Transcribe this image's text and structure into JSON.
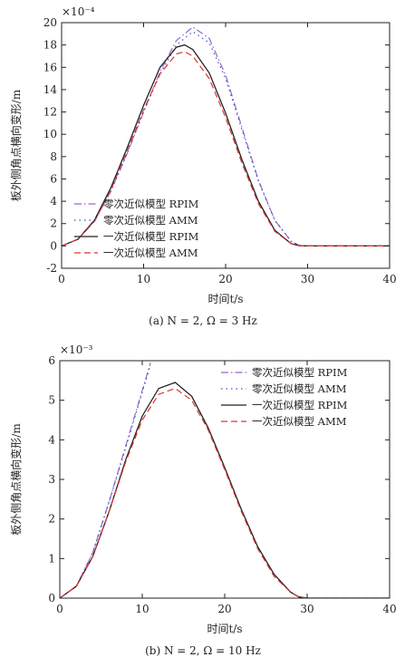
{
  "chart_data": [
    {
      "type": "line",
      "caption": "(a) N = 2, Ω = 3 Hz",
      "xlabel": "时间t/s",
      "ylabel": "板外侧角点横向变形/m",
      "y_scale_label": "×10⁻⁴",
      "xlim": [
        0,
        40
      ],
      "ylim": [
        -2,
        20
      ],
      "x_ticks": [
        0,
        10,
        20,
        30,
        40
      ],
      "y_ticks": [
        -2,
        0,
        2,
        4,
        6,
        8,
        10,
        12,
        14,
        16,
        18,
        20
      ],
      "legend_position": "lower-left",
      "grid": false,
      "series": [
        {
          "name": "零次近似模型 RPIM",
          "color": "#9966cc",
          "dash": "dashdot",
          "x": [
            0,
            2,
            4,
            6,
            8,
            10,
            12,
            14,
            16,
            18,
            20,
            22,
            24,
            26,
            28,
            29,
            30,
            32,
            35,
            40
          ],
          "y": [
            0,
            0.6,
            2.2,
            4.9,
            8.3,
            12,
            15.6,
            18.4,
            19.6,
            18.6,
            15.3,
            10.6,
            5.9,
            2.3,
            0.4,
            0.05,
            0,
            0,
            0,
            0
          ]
        },
        {
          "name": "零次近似模型 AMM",
          "color": "#3355bb",
          "dash": "dotted",
          "x": [
            0,
            2,
            4,
            6,
            8,
            10,
            12,
            14,
            16,
            18,
            20,
            22,
            24,
            26,
            28,
            29,
            30,
            32,
            35,
            40
          ],
          "y": [
            0,
            0.6,
            2.2,
            4.9,
            8.3,
            12,
            15.4,
            18,
            19.2,
            18.2,
            15,
            10.4,
            5.8,
            2.3,
            0.4,
            0.05,
            0,
            0,
            0,
            0
          ]
        },
        {
          "name": "一次近似模型 RPIM",
          "color": "#222222",
          "dash": "solid",
          "x": [
            0,
            2,
            4,
            6,
            8,
            10,
            12,
            14,
            15,
            16,
            18,
            20,
            22,
            24,
            26,
            28,
            29,
            30,
            32,
            35,
            40
          ],
          "y": [
            0,
            0.6,
            2.3,
            5.2,
            8.8,
            12.6,
            16,
            17.8,
            18,
            17.6,
            15.5,
            11.9,
            7.7,
            4,
            1.4,
            0.2,
            0.02,
            0,
            0,
            0,
            0
          ]
        },
        {
          "name": "一次近似模型 AMM",
          "color": "#dd3333",
          "dash": "dashed",
          "x": [
            0,
            2,
            4,
            6,
            8,
            10,
            12,
            14,
            15,
            16,
            18,
            20,
            22,
            24,
            26,
            28,
            29,
            30,
            32,
            35,
            40
          ],
          "y": [
            0,
            0.6,
            2.2,
            5,
            8.5,
            12.2,
            15.4,
            17.2,
            17.4,
            17,
            15,
            11.5,
            7.4,
            3.8,
            1.3,
            0.2,
            0.02,
            0,
            0,
            0,
            0
          ]
        }
      ]
    },
    {
      "type": "line",
      "caption": "(b) N = 2, Ω = 10 Hz",
      "xlabel": "时间t/s",
      "ylabel": "板外侧角点横向变形/m",
      "y_scale_label": "×10⁻³",
      "xlim": [
        0,
        40
      ],
      "ylim": [
        0,
        6
      ],
      "x_ticks": [
        0,
        10,
        20,
        30,
        40
      ],
      "y_ticks": [
        0,
        1,
        2,
        3,
        4,
        5,
        6
      ],
      "legend_position": "top-right",
      "grid": false,
      "series": [
        {
          "name": "零次近似模型 RPIM",
          "color": "#9966cc",
          "dash": "dashdot",
          "x": [
            0,
            2,
            4,
            6,
            8,
            9,
            10,
            10.5,
            11
          ],
          "y": [
            0,
            0.3,
            1.15,
            2.45,
            3.85,
            4.55,
            5.25,
            5.6,
            5.95
          ]
        },
        {
          "name": "零次近似模型 AMM",
          "color": "#3355bb",
          "dash": "dotted",
          "x": [
            0,
            2,
            4,
            6,
            8,
            9,
            10,
            10.5,
            11
          ],
          "y": [
            0,
            0.3,
            1.15,
            2.45,
            3.8,
            4.5,
            5.2,
            5.55,
            5.9
          ]
        },
        {
          "name": "一次近似模型 RPIM",
          "color": "#222222",
          "dash": "solid",
          "x": [
            0,
            2,
            4,
            6,
            8,
            10,
            12,
            14,
            16,
            18,
            20,
            22,
            24,
            26,
            28,
            29,
            30,
            32,
            35,
            40
          ],
          "y": [
            0,
            0.3,
            1.05,
            2.2,
            3.5,
            4.6,
            5.3,
            5.45,
            5.1,
            4.3,
            3.3,
            2.25,
            1.3,
            0.6,
            0.15,
            0.03,
            0,
            0,
            0,
            0
          ]
        },
        {
          "name": "一次近似模型 AMM",
          "color": "#dd3333",
          "dash": "dashed",
          "x": [
            0,
            2,
            4,
            6,
            8,
            10,
            12,
            14,
            16,
            18,
            20,
            22,
            24,
            26,
            28,
            29,
            30,
            32,
            35,
            40
          ],
          "y": [
            0,
            0.3,
            1.05,
            2.2,
            3.45,
            4.5,
            5.15,
            5.3,
            5,
            4.25,
            3.25,
            2.2,
            1.25,
            0.55,
            0.15,
            0.03,
            0,
            0,
            0,
            0
          ]
        }
      ]
    }
  ]
}
